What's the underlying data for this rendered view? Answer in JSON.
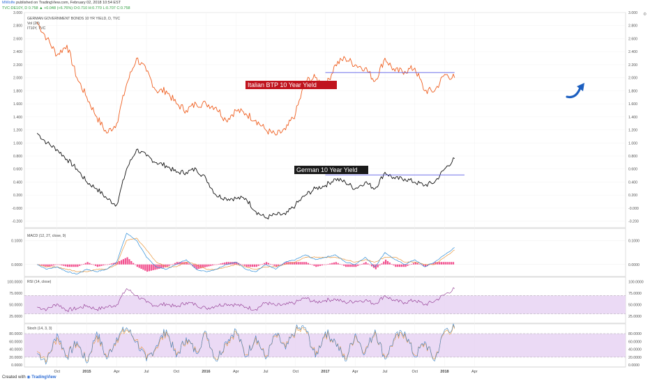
{
  "header": {
    "publisher": "MWolfe",
    "published_text": "published on TradingView.com, February 02, 2018 10:54 EST",
    "ticker_line": "TVC:DE10Y, D 0.758 ▲ +0.048 (+6.76%) O:0.710 H:0.770 L:0.707 C:0.758"
  },
  "footer": {
    "created_with": "Created with",
    "brand": "TradingView"
  },
  "panels": {
    "main": {
      "title": "GERMAN GOVERNMENT BONDS 10 YR YIELD, D, TVC",
      "sub1": "Vol (20)",
      "sub2": "IT10Y, TVC",
      "y_ticks": [
        "3.000",
        "2.800",
        "2.600",
        "2.400",
        "2.200",
        "2.000",
        "1.800",
        "1.600",
        "1.400",
        "1.200",
        "1.000",
        "0.800",
        "0.600",
        "0.400",
        "0.200",
        "-0.000",
        "-0.200"
      ]
    },
    "macd": {
      "title": "MACD (12, 27, close, 9)",
      "y_ticks": [
        "0.1000",
        "0.0000"
      ]
    },
    "rsi": {
      "title": "RSI (14, close)",
      "y_ticks": [
        "100.0000",
        "75.0000",
        "50.0000",
        "25.0000"
      ]
    },
    "stoch": {
      "title": "Stoch (14, 3, 3)",
      "y_ticks": [
        "80.0000",
        "60.0000",
        "40.0000",
        "20.0000",
        "0.0000"
      ]
    }
  },
  "annotations": {
    "italian_label": "Italian BTP 10 Year Yield",
    "german_label": "German 10 Year Yield"
  },
  "colors": {
    "italian": "#ef5e1f",
    "german": "#111111",
    "resistance": "#5b5ee6",
    "macd_line": "#2b8cd8",
    "signal_line": "#e8953a",
    "histogram": "#f0307a",
    "rsi_line": "#8a2c8a",
    "band": "#e6d1f2",
    "stoch_k": "#3a7fc0",
    "stoch_d": "#e8953a",
    "arrow": "#1c5fc0"
  },
  "chart_data": [
    {
      "type": "line",
      "title": "GERMAN GOVERNMENT BONDS 10 YR YIELD, D, TVC",
      "x_ticks": [
        "Oct",
        "2015",
        "Apr",
        "Jul",
        "Oct",
        "2016",
        "Apr",
        "Jul",
        "Oct",
        "2017",
        "Apr",
        "Jul",
        "Oct",
        "2018",
        "Apr"
      ],
      "ylim": [
        -0.3,
        3.0
      ],
      "series": [
        {
          "name": "IT10Y, TVC",
          "x": [
            "2014-08",
            "2014-09",
            "2014-10",
            "2014-11",
            "2014-12",
            "2015-01",
            "2015-02",
            "2015-03",
            "2015-04",
            "2015-05",
            "2015-06",
            "2015-07",
            "2015-08",
            "2015-09",
            "2015-10",
            "2015-11",
            "2015-12",
            "2016-01",
            "2016-02",
            "2016-03",
            "2016-04",
            "2016-05",
            "2016-06",
            "2016-07",
            "2016-08",
            "2016-09",
            "2016-10",
            "2016-11",
            "2016-12",
            "2017-01",
            "2017-02",
            "2017-03",
            "2017-04",
            "2017-05",
            "2017-06",
            "2017-07",
            "2017-08",
            "2017-09",
            "2017-10",
            "2017-11",
            "2017-12",
            "2018-01",
            "2018-02"
          ],
          "values": [
            2.85,
            2.6,
            2.35,
            2.5,
            2.0,
            1.7,
            1.4,
            1.15,
            1.3,
            1.9,
            2.3,
            2.1,
            1.8,
            1.8,
            1.6,
            1.5,
            1.6,
            1.6,
            1.55,
            1.35,
            1.5,
            1.45,
            1.35,
            1.2,
            1.12,
            1.2,
            1.45,
            1.95,
            2.0,
            1.85,
            2.2,
            2.3,
            2.2,
            2.15,
            1.95,
            2.3,
            2.1,
            2.1,
            2.15,
            1.8,
            1.8,
            2.05,
            2.0
          ]
        },
        {
          "name": "GERMAN GOVERNMENT BONDS 10 YR YIELD",
          "x": [
            "2014-08",
            "2014-09",
            "2014-10",
            "2014-11",
            "2014-12",
            "2015-01",
            "2015-02",
            "2015-03",
            "2015-04",
            "2015-05",
            "2015-06",
            "2015-07",
            "2015-08",
            "2015-09",
            "2015-10",
            "2015-11",
            "2015-12",
            "2016-01",
            "2016-02",
            "2016-03",
            "2016-04",
            "2016-05",
            "2016-06",
            "2016-07",
            "2016-08",
            "2016-09",
            "2016-10",
            "2016-11",
            "2016-12",
            "2017-01",
            "2017-02",
            "2017-03",
            "2017-04",
            "2017-05",
            "2017-06",
            "2017-07",
            "2017-08",
            "2017-09",
            "2017-10",
            "2017-11",
            "2017-12",
            "2018-01",
            "2018-02"
          ],
          "values": [
            1.15,
            1.0,
            0.9,
            0.75,
            0.6,
            0.4,
            0.3,
            0.15,
            0.05,
            0.6,
            0.9,
            0.8,
            0.7,
            0.65,
            0.55,
            0.55,
            0.6,
            0.45,
            0.2,
            0.15,
            0.15,
            0.15,
            -0.05,
            -0.15,
            -0.1,
            -0.1,
            0.05,
            0.2,
            0.3,
            0.35,
            0.45,
            0.4,
            0.3,
            0.4,
            0.3,
            0.55,
            0.45,
            0.45,
            0.4,
            0.35,
            0.4,
            0.6,
            0.76
          ]
        }
      ],
      "reference_lines": [
        {
          "name": "Italian resistance",
          "y": 2.08,
          "x_start": "2017-01",
          "x_end": "2018-02"
        },
        {
          "name": "German resistance",
          "y": 0.51,
          "x_start": "2017-01",
          "x_end": "2018-03"
        }
      ]
    },
    {
      "type": "line",
      "title": "MACD (12, 27, close, 9)",
      "ylim": [
        -0.05,
        0.15
      ],
      "x": [
        "2014-08",
        "2014-09",
        "2014-10",
        "2014-11",
        "2014-12",
        "2015-01",
        "2015-02",
        "2015-03",
        "2015-04",
        "2015-05",
        "2015-06",
        "2015-07",
        "2015-08",
        "2015-09",
        "2015-10",
        "2015-11",
        "2015-12",
        "2016-01",
        "2016-02",
        "2016-03",
        "2016-04",
        "2016-05",
        "2016-06",
        "2016-07",
        "2016-08",
        "2016-09",
        "2016-10",
        "2016-11",
        "2016-12",
        "2017-01",
        "2017-02",
        "2017-03",
        "2017-04",
        "2017-05",
        "2017-06",
        "2017-07",
        "2017-08",
        "2017-09",
        "2017-10",
        "2017-11",
        "2017-12",
        "2018-01",
        "2018-02"
      ],
      "series": [
        {
          "name": "MACD",
          "values": [
            0.0,
            -0.02,
            -0.01,
            -0.03,
            -0.04,
            -0.02,
            -0.03,
            -0.02,
            0.01,
            0.13,
            0.1,
            0.03,
            -0.01,
            -0.02,
            0.0,
            0.02,
            -0.02,
            -0.03,
            -0.02,
            0.0,
            0.01,
            -0.02,
            -0.03,
            0.0,
            -0.02,
            0.01,
            0.02,
            0.04,
            0.02,
            0.03,
            0.04,
            0.01,
            0.0,
            0.03,
            -0.01,
            0.05,
            0.02,
            0.0,
            0.02,
            -0.01,
            0.01,
            0.04,
            0.07
          ]
        },
        {
          "name": "Signal",
          "values": [
            0.0,
            -0.01,
            -0.01,
            -0.02,
            -0.03,
            -0.03,
            -0.02,
            -0.02,
            0.0,
            0.1,
            0.11,
            0.06,
            0.01,
            -0.01,
            -0.01,
            0.01,
            0.0,
            -0.02,
            -0.02,
            -0.01,
            0.0,
            -0.01,
            -0.02,
            -0.01,
            -0.01,
            0.0,
            0.01,
            0.03,
            0.03,
            0.03,
            0.03,
            0.02,
            0.01,
            0.02,
            0.01,
            0.03,
            0.03,
            0.01,
            0.01,
            0.0,
            0.0,
            0.03,
            0.06
          ]
        }
      ]
    },
    {
      "type": "line",
      "title": "RSI (14, close)",
      "ylim": [
        10,
        110
      ],
      "series": [
        {
          "name": "RSI",
          "values": [
            45,
            40,
            52,
            38,
            42,
            48,
            40,
            45,
            50,
            85,
            70,
            55,
            48,
            52,
            45,
            55,
            50,
            42,
            48,
            52,
            50,
            45,
            40,
            55,
            48,
            50,
            55,
            65,
            55,
            60,
            62,
            55,
            58,
            60,
            52,
            70,
            58,
            55,
            60,
            50,
            58,
            72,
            85
          ]
        }
      ],
      "bands": [
        30,
        70
      ]
    },
    {
      "type": "line",
      "title": "Stoch (14, 3, 3)",
      "ylim": [
        -5,
        105
      ],
      "series": [
        {
          "name": "%K",
          "values": [
            30,
            10,
            80,
            20,
            60,
            5,
            85,
            15,
            70,
            95,
            60,
            10,
            50,
            90,
            20,
            70,
            30,
            85,
            10,
            60,
            90,
            20,
            75,
            15,
            80,
            40,
            90,
            95,
            20,
            85,
            60,
            10,
            80,
            30,
            90,
            15,
            70,
            85,
            20,
            60,
            10,
            90,
            95
          ]
        },
        {
          "name": "%D",
          "values": [
            35,
            15,
            70,
            25,
            55,
            10,
            75,
            20,
            65,
            90,
            65,
            15,
            45,
            85,
            25,
            65,
            35,
            80,
            15,
            55,
            85,
            25,
            70,
            20,
            75,
            45,
            85,
            90,
            25,
            80,
            60,
            15,
            75,
            35,
            85,
            20,
            65,
            80,
            25,
            55,
            15,
            85,
            92
          ]
        }
      ],
      "bands": [
        20,
        80
      ]
    }
  ]
}
